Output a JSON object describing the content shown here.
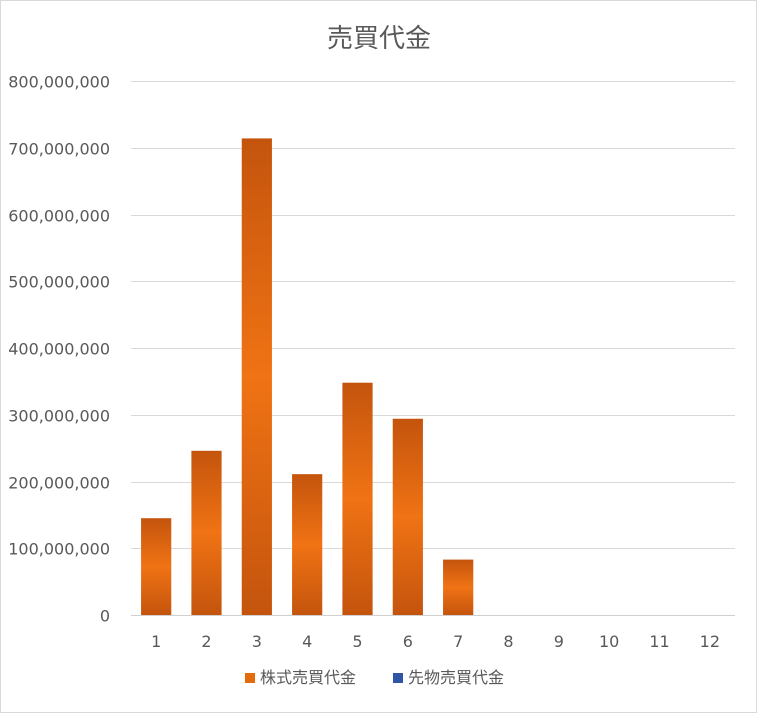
{
  "chart_data": {
    "type": "bar",
    "title": "売買代金",
    "xlabel": "",
    "ylabel": "",
    "categories": [
      "1",
      "2",
      "3",
      "4",
      "5",
      "6",
      "7",
      "8",
      "9",
      "10",
      "11",
      "12"
    ],
    "series": [
      {
        "name": "株式売買代金",
        "color": "#e46c0a",
        "values": [
          145000000,
          246000000,
          714000000,
          211000000,
          348000000,
          294000000,
          83000000,
          0,
          0,
          0,
          0,
          0
        ]
      },
      {
        "name": "先物売買代金",
        "color": "#2f55a4",
        "values": [
          0,
          0,
          0,
          0,
          0,
          0,
          0,
          0,
          0,
          0,
          0,
          0
        ]
      }
    ],
    "ylim": [
      0,
      800000000
    ],
    "yticks": [
      0,
      100000000,
      200000000,
      300000000,
      400000000,
      500000000,
      600000000,
      700000000,
      800000000
    ],
    "ytick_labels": [
      "0",
      "100,000,000",
      "200,000,000",
      "300,000,000",
      "400,000,000",
      "500,000,000",
      "600,000,000",
      "700,000,000",
      "800,000,000"
    ],
    "grid": true,
    "legend_position": "bottom"
  }
}
